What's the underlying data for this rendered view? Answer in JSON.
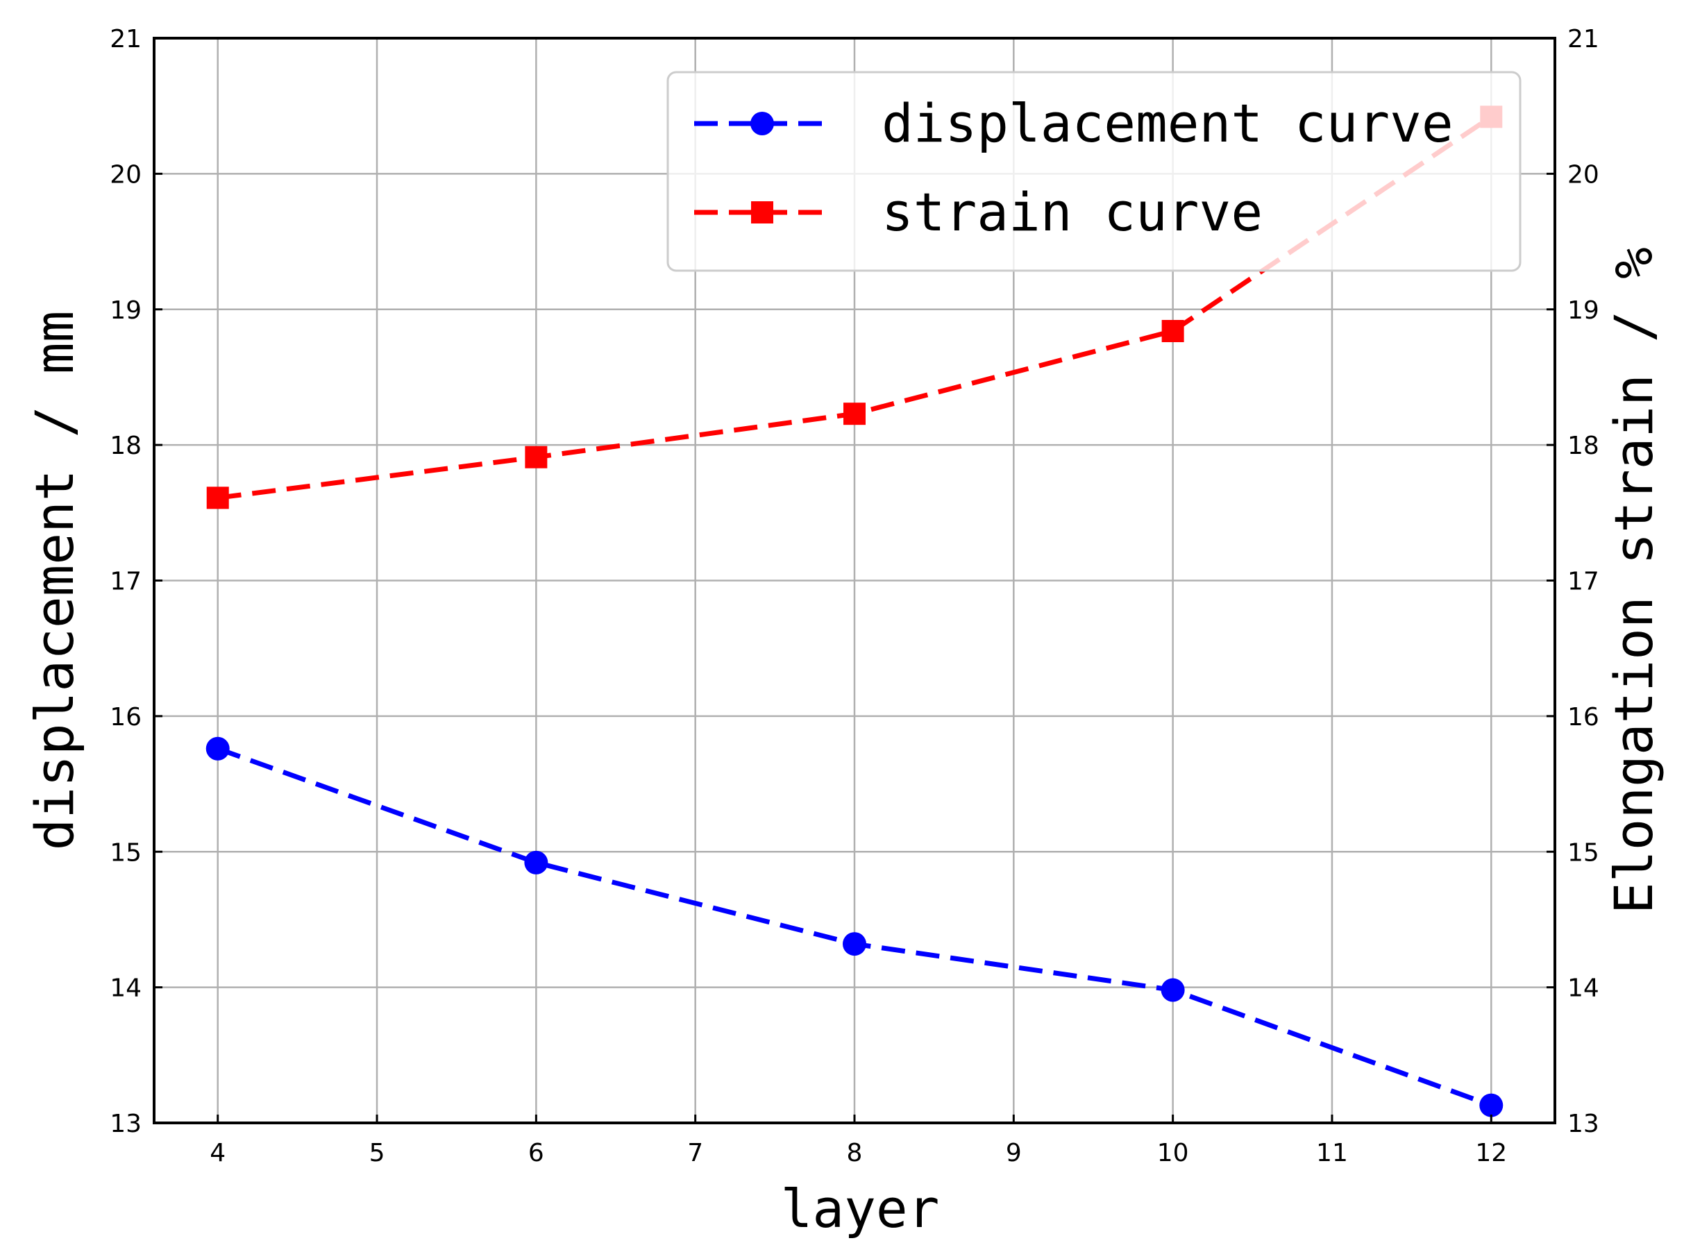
{
  "chart_data": {
    "type": "line",
    "title": "",
    "xlabel": "layer",
    "ylabel_left": "displacement / mm",
    "ylabel_right": "Elongation strain / %",
    "x": [
      4,
      6,
      8,
      10,
      12
    ],
    "xlim": [
      3.6,
      12.4
    ],
    "xticks": [
      "4",
      "5",
      "6",
      "7",
      "8",
      "9",
      "10",
      "11",
      "12"
    ],
    "ylim": [
      13,
      21
    ],
    "yticks": [
      "13",
      "14",
      "15",
      "16",
      "17",
      "18",
      "19",
      "20",
      "21"
    ],
    "yticks_right": [
      "13",
      "14",
      "15",
      "16",
      "17",
      "18",
      "19",
      "20",
      "21"
    ],
    "grid": true,
    "legend_position": "top-right",
    "series": [
      {
        "name": "displacement curve",
        "values": [
          15.76,
          14.92,
          14.32,
          13.98,
          13.13
        ],
        "color": "#0000ff",
        "marker": "circle",
        "line_style": "dashed",
        "axis": "left"
      },
      {
        "name": "strain curve",
        "values": [
          17.61,
          17.91,
          18.23,
          18.84,
          20.42
        ],
        "color": "#ff0000",
        "marker": "square",
        "line_style": "dashed",
        "axis": "right"
      }
    ]
  }
}
